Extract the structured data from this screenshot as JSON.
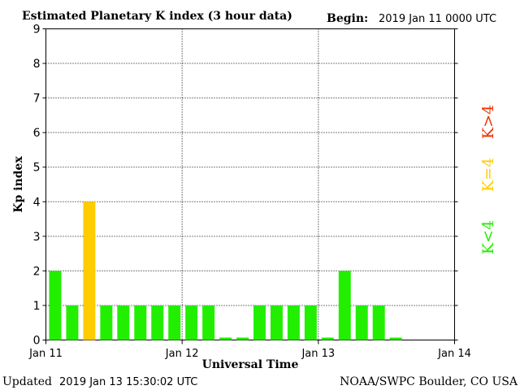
{
  "header": {
    "title": "Estimated Planetary K index (3 hour data)",
    "begin_label": "Begin:",
    "begin_value": "2019 Jan 11 0000 UTC"
  },
  "footer": {
    "updated_label": "Updated",
    "updated_value": "2019 Jan 13 15:30:02 UTC",
    "source": "NOAA/SWPC Boulder, CO USA"
  },
  "legend": {
    "low": "K<4",
    "mid": "K=4",
    "high": "K>4"
  },
  "colors": {
    "low": "#22ee00",
    "mid": "#ffcc00",
    "high": "#ee3300"
  },
  "chart_data": {
    "type": "bar",
    "title": "Estimated Planetary K index (3 hour data)",
    "xlabel": "Universal Time",
    "ylabel": "Kp index",
    "ylim": [
      0,
      9
    ],
    "yticks": [
      "0",
      "1",
      "2",
      "3",
      "4",
      "5",
      "6",
      "7",
      "8",
      "9"
    ],
    "x_ticks": [
      "Jan 11",
      "Jan 12",
      "Jan 13",
      "Jan 14"
    ],
    "grid": true,
    "interval_hours": 3,
    "values": [
      2,
      1,
      4,
      1,
      1,
      1,
      1,
      1,
      1,
      1,
      0.05,
      0.05,
      1,
      1,
      1,
      1,
      0.05,
      2,
      1,
      1,
      0.05
    ]
  }
}
